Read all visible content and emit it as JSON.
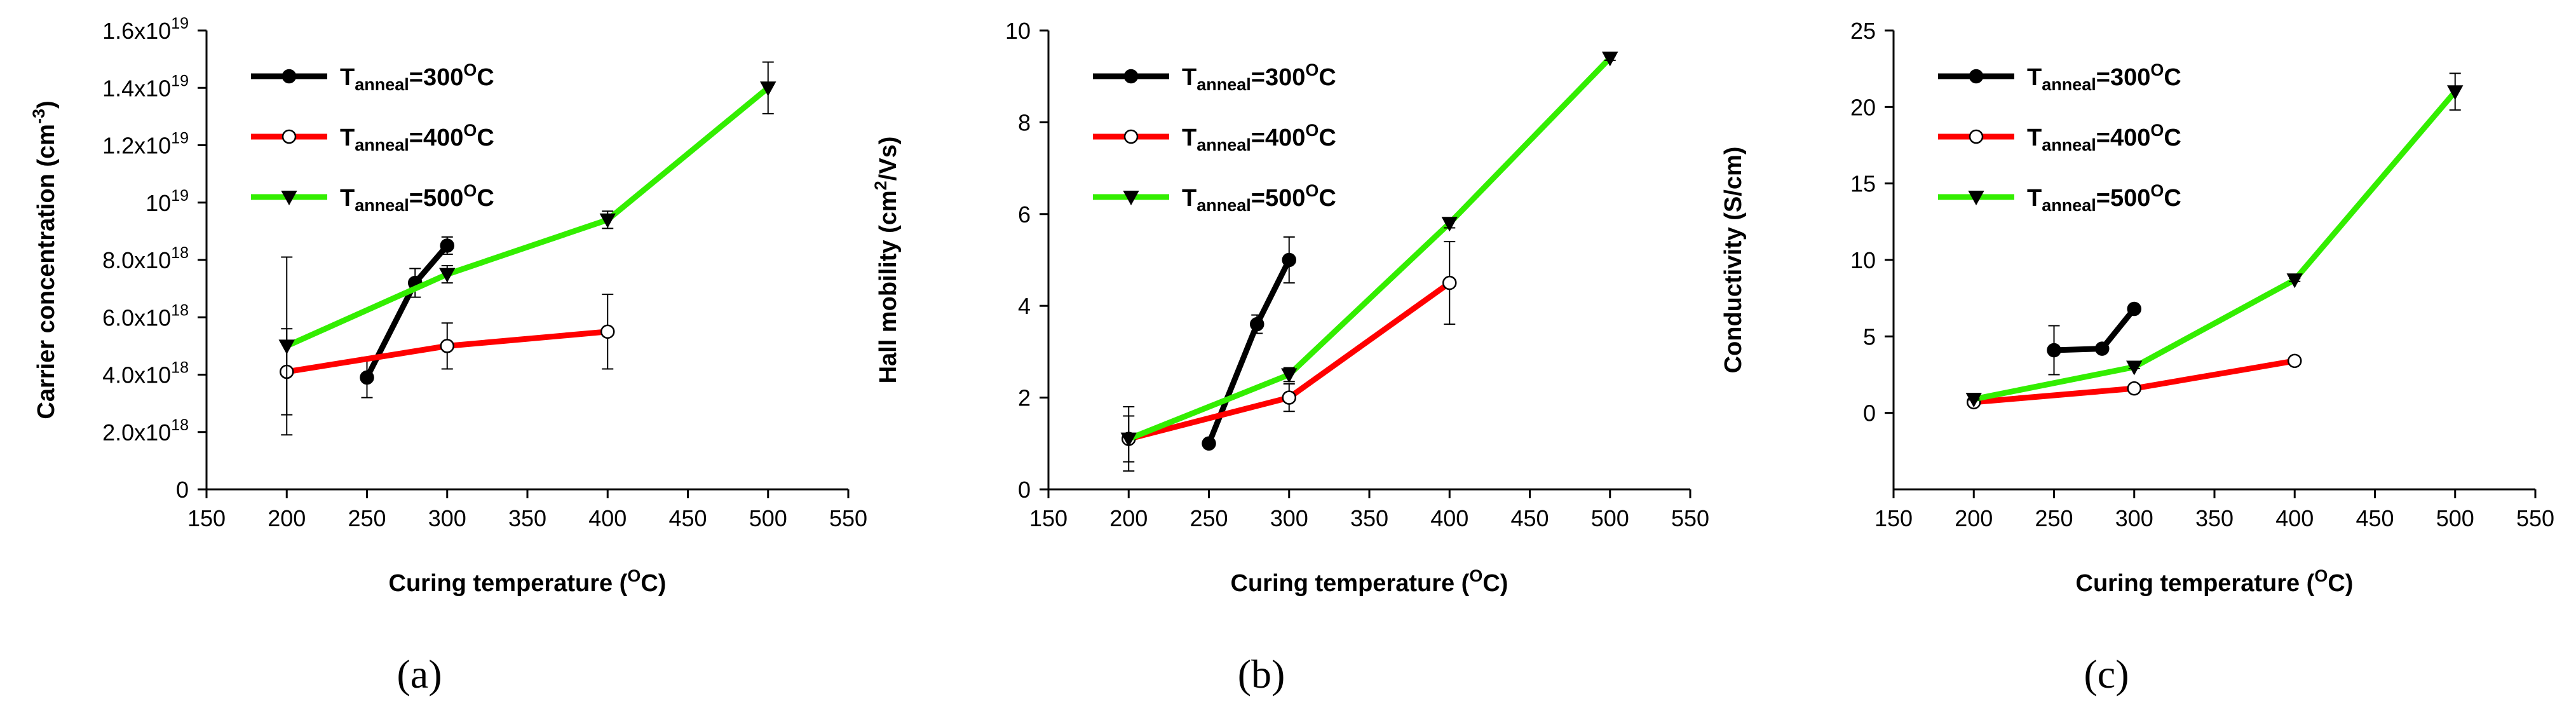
{
  "chart_data": [
    {
      "type": "line",
      "panel_label": "(a)",
      "panel_letter": "a",
      "ylabel": "Carrier concentration (cm-3)",
      "ylabel_main": "Carrier concentration (cm",
      "ylabel_sup": "-3",
      "ylabel_close": ")",
      "xlabel": "Curing temperature (OC)",
      "xlabel_main": "Curing temperature (",
      "xlabel_sup": "O",
      "xlabel_close": "C)",
      "xlim": [
        150,
        550
      ],
      "ylim": [
        0,
        1.6e+19
      ],
      "grid": false,
      "legend_position": "top-left",
      "x_ticks": [
        {
          "value": 150,
          "label": "150"
        },
        {
          "value": 200,
          "label": "200"
        },
        {
          "value": 250,
          "label": "250"
        },
        {
          "value": 300,
          "label": "300"
        },
        {
          "value": 350,
          "label": "350"
        },
        {
          "value": 400,
          "label": "400"
        },
        {
          "value": 450,
          "label": "450"
        },
        {
          "value": 500,
          "label": "500"
        },
        {
          "value": 550,
          "label": "550"
        }
      ],
      "y_ticks": [
        {
          "value": 0,
          "label": "0"
        },
        {
          "value": 2e+18,
          "label": "2.0x10",
          "exp": "18"
        },
        {
          "value": 4e+18,
          "label": "4.0x10",
          "exp": "18"
        },
        {
          "value": 6e+18,
          "label": "6.0x10",
          "exp": "18"
        },
        {
          "value": 8e+18,
          "label": "8.0x10",
          "exp": "18"
        },
        {
          "value": 1e+19,
          "label": "10",
          "exp": "19"
        },
        {
          "value": 1.2e+19,
          "label": "1.2x10",
          "exp": "19"
        },
        {
          "value": 1.4e+19,
          "label": "1.4x10",
          "exp": "19"
        },
        {
          "value": 1.6e+19,
          "label": "1.6x10",
          "exp": "19"
        }
      ],
      "series": [
        {
          "name": "Tanneal=300OC",
          "name_main": "T",
          "name_sub": "anneal",
          "name_mid": "=300",
          "name_sup": "O",
          "name_end": "C",
          "color": "#000000",
          "marker": "filled-circle",
          "x": [
            250,
            280,
            300
          ],
          "y": [
            3.9e+18,
            7.2e+18,
            8.5e+18
          ],
          "err": [
            7e+17,
            5e+17,
            3e+17
          ]
        },
        {
          "name": "Tanneal=400OC",
          "name_main": "T",
          "name_sub": "anneal",
          "name_mid": "=400",
          "name_sup": "O",
          "name_end": "C",
          "color": "#ff0000",
          "marker": "open-circle",
          "x": [
            200,
            300,
            400
          ],
          "y": [
            4.1e+18,
            5e+18,
            5.5e+18
          ],
          "err": [
            1.5e+18,
            8e+17,
            1.3e+18
          ]
        },
        {
          "name": "Tanneal=500OC",
          "name_main": "T",
          "name_sub": "anneal",
          "name_mid": "=500",
          "name_sup": "O",
          "name_end": "C",
          "color": "#33ee00",
          "marker": "filled-triangle-down",
          "x": [
            200,
            300,
            400,
            500
          ],
          "y": [
            5e+18,
            7.5e+18,
            9.4e+18,
            1.4e+19
          ],
          "err": [
            3.1e+18,
            3e+17,
            3e+17,
            9e+17
          ]
        }
      ]
    },
    {
      "type": "line",
      "panel_label": "(b)",
      "panel_letter": "b",
      "ylabel": "Hall mobility (cm2/Vs)",
      "ylabel_main": "Hall mobility (cm",
      "ylabel_sup": "2",
      "ylabel_close": "/Vs)",
      "xlabel": "Curing temperature (OC)",
      "xlabel_main": "Curing temperature (",
      "xlabel_sup": "O",
      "xlabel_close": "C)",
      "xlim": [
        150,
        550
      ],
      "ylim": [
        0,
        10
      ],
      "grid": false,
      "legend_position": "top-left",
      "x_ticks": [
        {
          "value": 150,
          "label": "150"
        },
        {
          "value": 200,
          "label": "200"
        },
        {
          "value": 250,
          "label": "250"
        },
        {
          "value": 300,
          "label": "300"
        },
        {
          "value": 350,
          "label": "350"
        },
        {
          "value": 400,
          "label": "400"
        },
        {
          "value": 450,
          "label": "450"
        },
        {
          "value": 500,
          "label": "500"
        },
        {
          "value": 550,
          "label": "550"
        }
      ],
      "y_ticks": [
        {
          "value": 0,
          "label": "0"
        },
        {
          "value": 2,
          "label": "2"
        },
        {
          "value": 4,
          "label": "4"
        },
        {
          "value": 6,
          "label": "6"
        },
        {
          "value": 8,
          "label": "8"
        },
        {
          "value": 10,
          "label": "10"
        }
      ],
      "series": [
        {
          "name": "Tanneal=300OC",
          "name_main": "T",
          "name_sub": "anneal",
          "name_mid": "=300",
          "name_sup": "O",
          "name_end": "C",
          "color": "#000000",
          "marker": "filled-circle",
          "x": [
            250,
            280,
            300
          ],
          "y": [
            1.0,
            3.6,
            5.0
          ],
          "err": [
            0.05,
            0.2,
            0.5
          ]
        },
        {
          "name": "Tanneal=400OC",
          "name_main": "T",
          "name_sub": "anneal",
          "name_mid": "=400",
          "name_sup": "O",
          "name_end": "C",
          "color": "#ff0000",
          "marker": "open-circle",
          "x": [
            200,
            300,
            400
          ],
          "y": [
            1.1,
            2.0,
            4.5
          ],
          "err": [
            0.5,
            0.3,
            0.9
          ]
        },
        {
          "name": "Tanneal=500OC",
          "name_main": "T",
          "name_sub": "anneal",
          "name_mid": "=500",
          "name_sup": "O",
          "name_end": "C",
          "color": "#33ee00",
          "marker": "filled-triangle-down",
          "x": [
            200,
            300,
            400,
            500
          ],
          "y": [
            1.1,
            2.5,
            5.8,
            9.4
          ],
          "err": [
            0.7,
            0.15,
            0.1,
            0.05
          ]
        }
      ]
    },
    {
      "type": "line",
      "panel_label": "(c)",
      "panel_letter": "c",
      "ylabel": "Conductivity (S/cm)",
      "ylabel_main": "Conductivity (S/cm)",
      "ylabel_sup": "",
      "ylabel_close": "",
      "xlabel": "Curing temperature (OC)",
      "xlabel_main": "Curing temperature (",
      "xlabel_sup": "O",
      "xlabel_close": "C)",
      "xlim": [
        150,
        550
      ],
      "ylim": [
        -5,
        25
      ],
      "grid": false,
      "legend_position": "top-left",
      "x_ticks": [
        {
          "value": 150,
          "label": "150"
        },
        {
          "value": 200,
          "label": "200"
        },
        {
          "value": 250,
          "label": "250"
        },
        {
          "value": 300,
          "label": "300"
        },
        {
          "value": 350,
          "label": "350"
        },
        {
          "value": 400,
          "label": "400"
        },
        {
          "value": 450,
          "label": "450"
        },
        {
          "value": 500,
          "label": "500"
        },
        {
          "value": 550,
          "label": "550"
        }
      ],
      "y_ticks": [
        {
          "value": 0,
          "label": "0"
        },
        {
          "value": 5,
          "label": "5"
        },
        {
          "value": 10,
          "label": "10"
        },
        {
          "value": 15,
          "label": "15"
        },
        {
          "value": 20,
          "label": "20"
        },
        {
          "value": 25,
          "label": "25"
        }
      ],
      "series": [
        {
          "name": "Tanneal=300OC",
          "name_main": "T",
          "name_sub": "anneal",
          "name_mid": "=300",
          "name_sup": "O",
          "name_end": "C",
          "color": "#000000",
          "marker": "filled-circle",
          "x": [
            250,
            280,
            300
          ],
          "y": [
            4.1,
            4.2,
            6.8
          ],
          "err": [
            1.6,
            0.1,
            0.1
          ]
        },
        {
          "name": "Tanneal=400OC",
          "name_main": "T",
          "name_sub": "anneal",
          "name_mid": "=400",
          "name_sup": "O",
          "name_end": "C",
          "color": "#ff0000",
          "marker": "open-circle",
          "x": [
            200,
            300,
            400
          ],
          "y": [
            0.7,
            1.6,
            3.4
          ],
          "err": [
            0.05,
            0.1,
            0.1
          ]
        },
        {
          "name": "Tanneal=500OC",
          "name_main": "T",
          "name_sub": "anneal",
          "name_mid": "=500",
          "name_sup": "O",
          "name_end": "C",
          "color": "#33ee00",
          "marker": "filled-triangle-down",
          "x": [
            200,
            300,
            400,
            500
          ],
          "y": [
            0.9,
            3.0,
            8.7,
            21.0
          ],
          "err": [
            0.05,
            0.1,
            0.1,
            1.2
          ]
        }
      ]
    }
  ]
}
